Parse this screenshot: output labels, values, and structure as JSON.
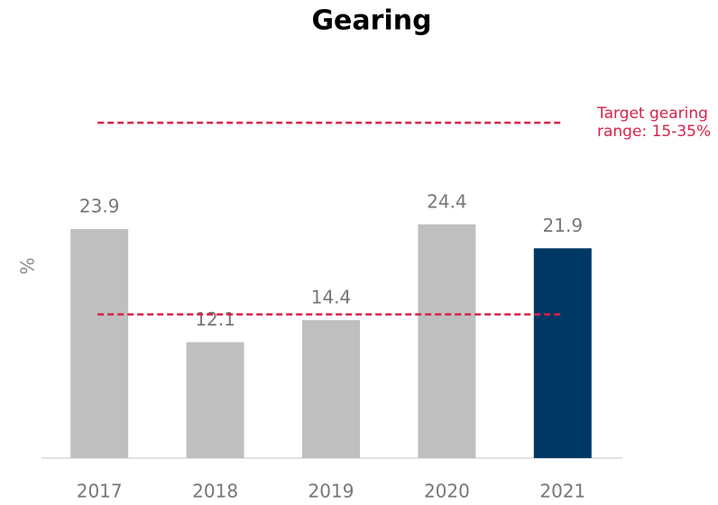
{
  "chart_data": {
    "type": "bar",
    "title": "Gearing",
    "y_label": "%",
    "categories": [
      "2017",
      "2018",
      "2019",
      "2020",
      "2021"
    ],
    "values": [
      23.9,
      12.1,
      14.4,
      24.4,
      21.9
    ],
    "colors": [
      "#bfbfbf",
      "#bfbfbf",
      "#bfbfbf",
      "#bfbfbf",
      "#003865"
    ],
    "ylim": [
      0,
      40
    ],
    "reference_lines": [
      15,
      35
    ],
    "reference_color": "#d6224a",
    "annotation": [
      "Target gearing",
      "range: 15-35%"
    ]
  }
}
